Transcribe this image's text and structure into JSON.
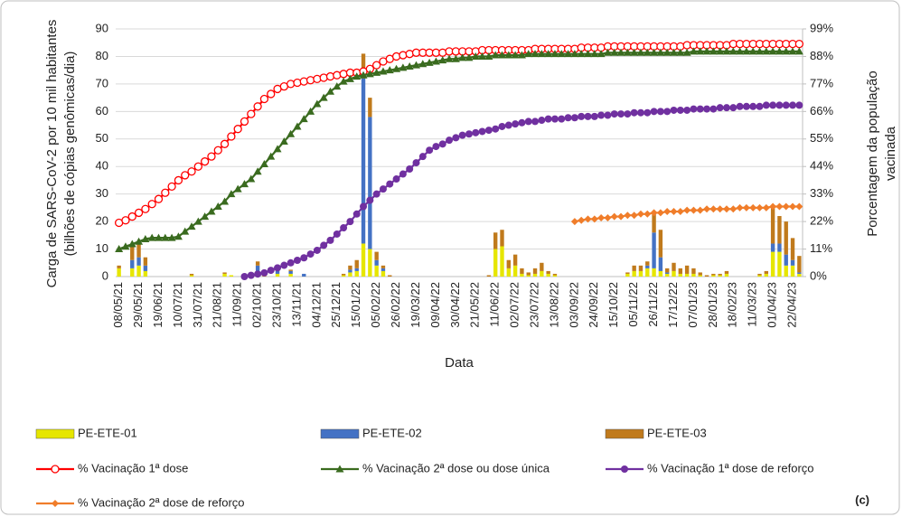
{
  "chart_data": {
    "type": "bar-line",
    "ylabel": [
      "Carga de SARS-CoV-2 por 10 mil habitantes",
      "(bilhões de cópias genômicas/dia)"
    ],
    "y2label": [
      "Porcentagem da população",
      "vacinada"
    ],
    "xlabel": "Data",
    "panel_label": "(c)",
    "categories": [
      "08/05/21",
      null,
      null,
      "29/05/21",
      null,
      null,
      "19/06/21",
      null,
      null,
      "10/07/21",
      null,
      null,
      "31/07/21",
      null,
      null,
      "21/08/21",
      null,
      null,
      "11/09/21",
      null,
      null,
      "02/10/21",
      null,
      null,
      "23/10/21",
      null,
      null,
      "13/11/21",
      null,
      null,
      "04/12/21",
      null,
      null,
      "25/12/21",
      null,
      null,
      "15/01/22",
      null,
      null,
      "05/02/22",
      null,
      null,
      "26/02/22",
      null,
      null,
      "19/03/22",
      null,
      null,
      "09/04/22",
      null,
      null,
      "30/04/22",
      null,
      null,
      "21/05/22",
      null,
      null,
      "11/06/22",
      null,
      null,
      "02/07/22",
      null,
      null,
      "23/07/22",
      null,
      null,
      "13/08/22",
      null,
      null,
      "03/09/22",
      null,
      null,
      "24/09/22",
      null,
      null,
      "15/10/22",
      null,
      null,
      "05/11/22",
      null,
      null,
      "26/11/22",
      null,
      null,
      "17/12/22",
      null,
      null,
      "07/01/23",
      null,
      null,
      "28/01/23",
      null,
      null,
      "18/02/23",
      null,
      null,
      "11/03/23",
      null,
      null,
      "01/04/23",
      null,
      null,
      "22/04/23",
      null
    ],
    "ylim": [
      0,
      90
    ],
    "yticks": [
      0,
      10,
      20,
      30,
      40,
      50,
      60,
      70,
      80,
      90
    ],
    "y2lim": [
      0,
      99
    ],
    "y2ticks": [
      {
        "value": 0,
        "label": "0%"
      },
      {
        "value": 11,
        "label": "11%"
      },
      {
        "value": 22,
        "label": "22%"
      },
      {
        "value": 33,
        "label": "33%"
      },
      {
        "value": 44,
        "label": "44%"
      },
      {
        "value": 55,
        "label": "55%"
      },
      {
        "value": 66,
        "label": "66%"
      },
      {
        "value": 77,
        "label": "77%"
      },
      {
        "value": 88,
        "label": "88%"
      },
      {
        "value": 99,
        "label": "99%"
      }
    ],
    "grid": true,
    "series": [
      {
        "name": "PE-ETE-01",
        "kind": "bar",
        "color": "#e6e600",
        "values": [
          3,
          0,
          3,
          4,
          2,
          0,
          0,
          0,
          0,
          0,
          0,
          0.5,
          0,
          0,
          0,
          0,
          1,
          0.5,
          0,
          0,
          0,
          2,
          0,
          0,
          1,
          0,
          1,
          0,
          0,
          0,
          0,
          0,
          0,
          0,
          0.5,
          1.5,
          2,
          12,
          10,
          4,
          2,
          0,
          0,
          0,
          0,
          0,
          0,
          0,
          0,
          0,
          0,
          0,
          0,
          0,
          0,
          0,
          0,
          10,
          11,
          3,
          4,
          1,
          0.5,
          1,
          2,
          1,
          0.5,
          0,
          0,
          0,
          0,
          0,
          0,
          0,
          0,
          0,
          0,
          1,
          2,
          2,
          3,
          3,
          2,
          1,
          2,
          1,
          1,
          1,
          0.5,
          0,
          0.5,
          0.5,
          1,
          0,
          0,
          0,
          0,
          0.5,
          1,
          9,
          9,
          4,
          4,
          1
        ]
      },
      {
        "name": "PE-ETE-02",
        "kind": "bar",
        "color": "#4472c4",
        "values": [
          0,
          0,
          3,
          3,
          2,
          0,
          0,
          0,
          0,
          0,
          0,
          0,
          0,
          0,
          0,
          0,
          0,
          0,
          0,
          0,
          1,
          2,
          0,
          0,
          1,
          0,
          1,
          0,
          1,
          0,
          0,
          0,
          0,
          0,
          0,
          1,
          1,
          60,
          48,
          2,
          1,
          0,
          0,
          0,
          0,
          0,
          0,
          0,
          0,
          0,
          0,
          0,
          0,
          0,
          0,
          0,
          0,
          0,
          0,
          0,
          0,
          0,
          0,
          0,
          0,
          0,
          0,
          0,
          0,
          0,
          0,
          0,
          0,
          0,
          0,
          0,
          0,
          0,
          0,
          0,
          1,
          13,
          5,
          0.5,
          0,
          0,
          0,
          0,
          0,
          0,
          0,
          0,
          0,
          0,
          0,
          0,
          0,
          0,
          0,
          3,
          3,
          4,
          2,
          0.5
        ]
      },
      {
        "name": "PE-ETE-03",
        "kind": "bar",
        "color": "#c07a1c",
        "values": [
          1,
          0,
          5,
          5,
          3,
          0,
          0,
          0,
          0,
          0,
          0,
          0.5,
          0,
          0,
          0,
          0,
          0.5,
          0,
          0,
          0,
          0,
          1.5,
          0.5,
          0,
          0.5,
          0,
          0.5,
          0,
          0,
          0,
          0,
          0,
          0,
          0,
          0.5,
          1.5,
          3,
          9,
          7,
          3,
          1,
          0.5,
          0,
          0,
          0,
          0,
          0,
          0,
          0,
          0,
          0,
          0,
          0,
          0,
          0,
          0,
          0.5,
          6,
          6,
          3,
          4,
          2,
          1,
          2,
          3,
          1,
          0.5,
          0,
          0,
          0,
          0,
          0,
          0,
          0,
          0,
          0,
          0,
          0.5,
          2,
          2,
          1.5,
          7,
          10,
          1.5,
          3,
          2,
          3,
          2,
          1,
          0.5,
          0.5,
          0.5,
          1,
          0,
          0,
          0,
          0,
          0.5,
          1,
          13,
          10,
          12,
          8,
          6
        ]
      },
      {
        "name": "% Vacinação 1ª dose",
        "kind": "line",
        "axis": "y2",
        "color": "#ff0000",
        "marker": "circle-open",
        "values": [
          21.5,
          22.5,
          24,
          25.5,
          27,
          29,
          31,
          33.5,
          36,
          38.5,
          40.5,
          42,
          44,
          46,
          48,
          50.5,
          53,
          56,
          59,
          62,
          65,
          68,
          71,
          73,
          75,
          76,
          77,
          77.5,
          78,
          78.5,
          79,
          79.5,
          80,
          80.5,
          81,
          81.5,
          81.5,
          82,
          83,
          84.5,
          86,
          87,
          88,
          88.5,
          89,
          89.5,
          89.5,
          89.5,
          89.5,
          89.5,
          90,
          90,
          90,
          90,
          90,
          90.5,
          90.5,
          90.5,
          90.5,
          90.5,
          90.5,
          90.5,
          90.5,
          91,
          91,
          91,
          91,
          91,
          91,
          91,
          91.5,
          91.5,
          91.5,
          91.5,
          92,
          92,
          92,
          92,
          92,
          92,
          92,
          92,
          92,
          92,
          92,
          92,
          92.5,
          92.5,
          92.5,
          92.5,
          92.5,
          92.5,
          92.5,
          93,
          93,
          93,
          93,
          93,
          93,
          93,
          93,
          93,
          93,
          93
        ]
      },
      {
        "name": "% Vacinação 2ª dose ou dose única",
        "kind": "line",
        "axis": "y2",
        "color": "#3a6b1f",
        "marker": "triangle",
        "values": [
          11,
          12,
          13,
          14,
          15,
          15.5,
          15.5,
          15.5,
          15.5,
          16,
          18,
          20,
          22,
          24,
          26,
          28,
          30,
          33,
          35,
          37,
          39,
          42,
          45,
          48,
          51,
          54,
          57,
          60,
          63,
          66,
          69,
          71.5,
          74,
          76,
          78,
          79,
          80,
          80.5,
          81,
          81.5,
          82,
          82.5,
          83,
          83.5,
          84,
          84.5,
          85,
          85.5,
          86,
          86.5,
          87,
          87,
          87.5,
          87.5,
          88,
          88,
          88,
          88.5,
          88.5,
          88.5,
          88.5,
          88.5,
          89,
          89,
          89,
          89,
          89,
          89,
          89,
          89,
          89,
          89,
          89,
          89,
          89.5,
          89.5,
          89.5,
          89.5,
          89.5,
          89.5,
          89.5,
          89.5,
          89.5,
          89.5,
          89.5,
          89.5,
          89.5,
          90,
          90,
          90,
          90,
          90,
          90,
          90,
          90,
          90,
          90,
          90,
          90,
          90,
          90,
          90,
          90,
          90
        ]
      },
      {
        "name": "% Vacinação 1ª dose de reforço",
        "kind": "line",
        "axis": "y2",
        "color": "#7030a0",
        "marker": "circle",
        "values": [
          null,
          null,
          null,
          null,
          null,
          null,
          null,
          null,
          null,
          null,
          null,
          null,
          null,
          null,
          null,
          null,
          null,
          null,
          null,
          0,
          0.5,
          1,
          1.5,
          2.5,
          3.5,
          4.5,
          5.5,
          6.5,
          7.5,
          9,
          10.5,
          12.5,
          14.5,
          17,
          19.5,
          22,
          25,
          28,
          30.5,
          33,
          35,
          37,
          39,
          41,
          43,
          45.5,
          48,
          50.5,
          52,
          53,
          54.5,
          55.5,
          56.5,
          57,
          57.5,
          58,
          58.5,
          59,
          60,
          60.5,
          61,
          61.5,
          62,
          62,
          62.5,
          63,
          63,
          63,
          63.5,
          63.5,
          64,
          64,
          64,
          64.5,
          64.5,
          65,
          65,
          65,
          65.5,
          65.5,
          65.5,
          66,
          66,
          66,
          66.5,
          66.5,
          66.5,
          67,
          67,
          67,
          67,
          67.5,
          67.5,
          67.5,
          68,
          68,
          68,
          68,
          68.5,
          68.5,
          68.5,
          68.5,
          68.5,
          68.5
        ]
      },
      {
        "name": "% Vacinação 2ª dose de reforço",
        "kind": "line",
        "axis": "y2",
        "color": "#f07d2a",
        "marker": "diamond",
        "values": [
          null,
          null,
          null,
          null,
          null,
          null,
          null,
          null,
          null,
          null,
          null,
          null,
          null,
          null,
          null,
          null,
          null,
          null,
          null,
          null,
          null,
          null,
          null,
          null,
          null,
          null,
          null,
          null,
          null,
          null,
          null,
          null,
          null,
          null,
          null,
          null,
          null,
          null,
          null,
          null,
          null,
          null,
          null,
          null,
          null,
          null,
          null,
          null,
          null,
          null,
          null,
          null,
          null,
          null,
          null,
          null,
          null,
          null,
          null,
          null,
          null,
          null,
          null,
          null,
          null,
          null,
          null,
          null,
          null,
          22,
          22.5,
          23,
          23,
          23.5,
          23.5,
          24,
          24,
          24.5,
          24.5,
          25,
          25,
          25.5,
          25.5,
          26,
          26,
          26,
          26.5,
          26.5,
          26.5,
          27,
          27,
          27,
          27,
          27,
          27.5,
          27.5,
          27.5,
          27.5,
          27.5,
          28,
          28,
          28,
          28,
          28
        ]
      }
    ]
  }
}
